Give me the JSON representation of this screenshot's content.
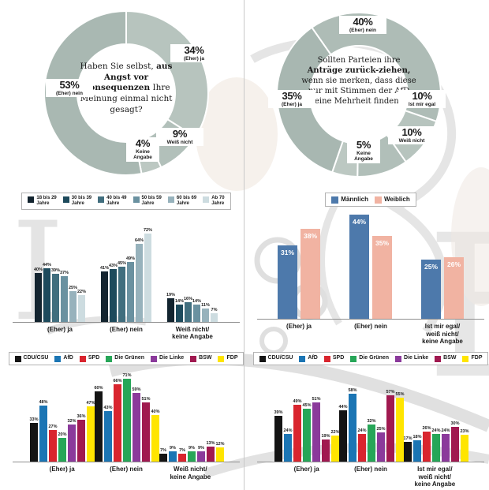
{
  "page": {
    "background": "#ffffff",
    "divider_color": "#c8c8c8",
    "watermark": "faz-eagle-and-masthead-letters"
  },
  "chart_data": [
    {
      "type": "pie",
      "variant": "donut",
      "panel": "top-left",
      "rotation_deg": 0,
      "ring_color_base": "#aebcb6",
      "question_rich": [
        {
          "t": "Haben Sie selbst, ",
          "b": false
        },
        {
          "t": "aus Angst vor Konsequenzen",
          "b": true
        },
        {
          "t": " Ihre Meinung einmal nicht gesagt?",
          "b": false
        }
      ],
      "segments": [
        {
          "label": "(Eher) ja",
          "pct_label": "34%",
          "value": 34,
          "color": "#b7c4be"
        },
        {
          "label": "Weiß nicht",
          "pct_label": "9%",
          "value": 9,
          "color": "#b2c0ba"
        },
        {
          "label": "Keine Angabe",
          "pct_label": "4%",
          "value": 4,
          "color": "#bcc8c2"
        },
        {
          "label": "(Eher) nein",
          "pct_label": "53%",
          "value": 53,
          "color": "#a9b8b2"
        }
      ]
    },
    {
      "type": "pie",
      "variant": "donut",
      "panel": "top-right",
      "rotation_deg": 325,
      "ring_color_base": "#aebcb6",
      "question_rich": [
        {
          "t": "Sollten Parteien ihre ",
          "b": false
        },
        {
          "t": "Anträge zurück-ziehen,",
          "b": true
        },
        {
          "t": " wenn sie merken, dass diese nur mit Stimmen der AfD eine Mehrheit finden?",
          "b": false
        }
      ],
      "segments": [
        {
          "label": "(Eher) nein",
          "pct_label": "40%",
          "value": 40,
          "color": "#aebcb6"
        },
        {
          "label": "Ist mir egal",
          "pct_label": "10%",
          "value": 10,
          "color": "#b7c4be"
        },
        {
          "label": "Weiß nicht",
          "pct_label": "10%",
          "value": 10,
          "color": "#b1bfb9"
        },
        {
          "label": "Keine Angabe",
          "pct_label": "5%",
          "value": 5,
          "color": "#bcc8c2"
        },
        {
          "label": "(Eher) ja",
          "pct_label": "35%",
          "value": 35,
          "color": "#a8b7b1"
        }
      ]
    },
    {
      "type": "bar",
      "panel": "middle-left",
      "value_suffix": "%",
      "ylim": [
        0,
        80
      ],
      "categories": [
        "(Eher) ja",
        "(Eher) nein",
        "Weiß nicht/\nkeine Angabe"
      ],
      "series": [
        {
          "name": "18 bis 29\nJahre",
          "color": "#13242f",
          "values": [
            40,
            41,
            19
          ]
        },
        {
          "name": "30 bis 39\nJahre",
          "color": "#1d4a5c",
          "values": [
            44,
            43,
            14
          ]
        },
        {
          "name": "40 bis 49\nJahre",
          "color": "#416e7e",
          "values": [
            39,
            45,
            16
          ]
        },
        {
          "name": "50 bis 59\nJahre",
          "color": "#6a91a0",
          "values": [
            37,
            49,
            14
          ]
        },
        {
          "name": "60 bis 69\nJahre",
          "color": "#97b2bc",
          "values": [
            25,
            64,
            11
          ]
        },
        {
          "name": "Ab 70\nJahre",
          "color": "#cddce0",
          "values": [
            22,
            72,
            7
          ]
        }
      ]
    },
    {
      "type": "bar",
      "panel": "middle-right",
      "value_suffix": "%",
      "ylim": [
        0,
        50
      ],
      "label_style": "inside-white",
      "categories": [
        "(Eher) ja",
        "(Eher) nein",
        "Ist mir egal/\nweiß nicht/\nkeine Angabe"
      ],
      "series": [
        {
          "name": "Männlich",
          "color": "#4d79ab",
          "values": [
            31,
            44,
            25
          ]
        },
        {
          "name": "Weiblich",
          "color": "#f1b3a2",
          "values": [
            38,
            35,
            26
          ]
        }
      ]
    },
    {
      "type": "bar",
      "panel": "bottom-left",
      "value_suffix": "%",
      "ylim": [
        0,
        80
      ],
      "categories": [
        "(Eher) ja",
        "(Eher) nein",
        "Weiß nicht/\nkeine Angabe"
      ],
      "series": [
        {
          "name": "CDU/CSU",
          "color": "#141414",
          "values": [
            33,
            60,
            7
          ]
        },
        {
          "name": "AfD",
          "color": "#1b75b4",
          "values": [
            48,
            43,
            9
          ]
        },
        {
          "name": "SPD",
          "color": "#d9252e",
          "values": [
            27,
            66,
            7
          ]
        },
        {
          "name": "Die Grünen",
          "color": "#27a658",
          "values": [
            20,
            71,
            9
          ]
        },
        {
          "name": "Die Linke",
          "color": "#8b3a9b",
          "values": [
            32,
            59,
            9
          ]
        },
        {
          "name": "BSW",
          "color": "#a01950",
          "values": [
            36,
            51,
            13
          ]
        },
        {
          "name": "FDP",
          "color": "#ffe500",
          "values": [
            47,
            40,
            12
          ]
        }
      ]
    },
    {
      "type": "bar",
      "panel": "bottom-right",
      "value_suffix": "%",
      "ylim": [
        0,
        80
      ],
      "categories": [
        "(Eher) ja",
        "(Eher) nein",
        "Ist mir egal/\nweiß nicht/\nkeine Angabe"
      ],
      "series": [
        {
          "name": "CDU/CSU",
          "color": "#141414",
          "values": [
            39,
            44,
            17
          ]
        },
        {
          "name": "AfD",
          "color": "#1b75b4",
          "values": [
            24,
            58,
            18
          ]
        },
        {
          "name": "SPD",
          "color": "#d9252e",
          "values": [
            49,
            24,
            26
          ]
        },
        {
          "name": "Die Grünen",
          "color": "#27a658",
          "values": [
            45,
            32,
            24
          ]
        },
        {
          "name": "Die Linke",
          "color": "#8b3a9b",
          "values": [
            51,
            25,
            24
          ]
        },
        {
          "name": "BSW",
          "color": "#a01950",
          "values": [
            19,
            57,
            30
          ]
        },
        {
          "name": "FDP",
          "color": "#ffe500",
          "values": [
            22,
            55,
            23
          ]
        }
      ]
    }
  ]
}
